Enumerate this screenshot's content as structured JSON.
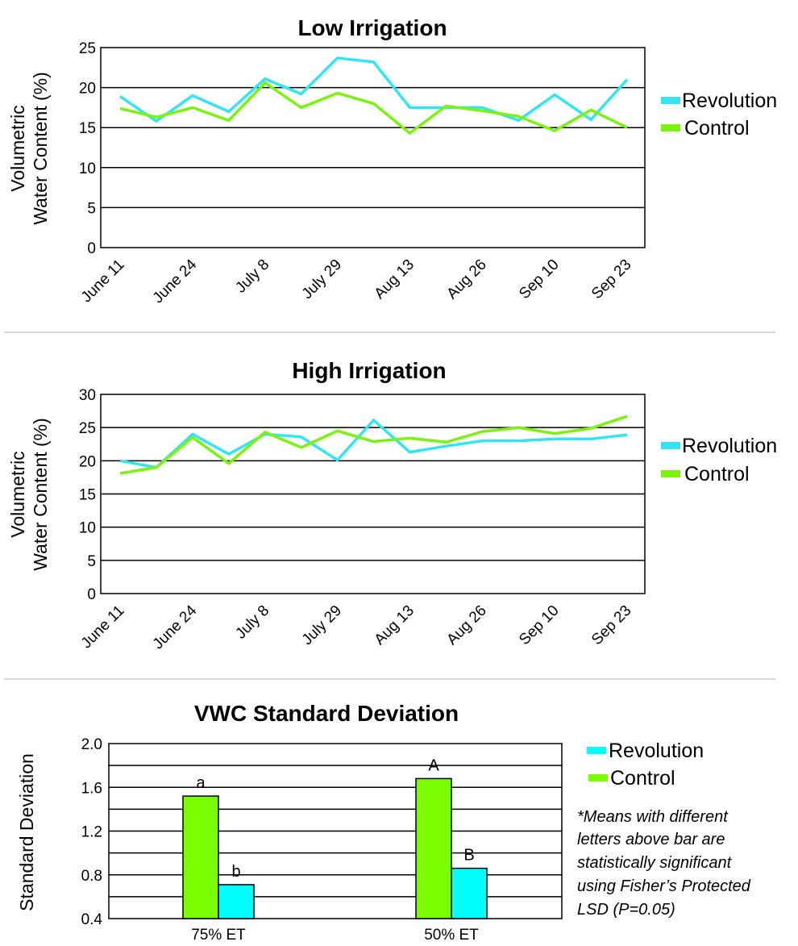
{
  "chart_data": [
    {
      "type": "line",
      "title": "Low Irrigation",
      "ylabel": [
        "Volumetric",
        "Water Content (%)"
      ],
      "xlabel": "",
      "ylim": [
        0,
        25
      ],
      "yticks": [
        0,
        5,
        10,
        15,
        20,
        25
      ],
      "grid": true,
      "legend": "right",
      "tick_labels": [
        "June 11",
        "June 24",
        "July 8",
        "July 29",
        "Aug 13",
        "Aug 26",
        "Sep 10",
        "Sep 23"
      ],
      "x": [
        0,
        0.5,
        1,
        1.5,
        2,
        2.5,
        3,
        3.5,
        4,
        4.5,
        5,
        5.5,
        6,
        6.5,
        7
      ],
      "series": [
        {
          "name": "Revolution",
          "color": "#33e5f2",
          "values": [
            18.9,
            15.8,
            19.0,
            17.0,
            21.1,
            19.2,
            23.7,
            23.2,
            17.5,
            17.5,
            17.5,
            15.9,
            19.1,
            16.0,
            21.0
          ]
        },
        {
          "name": "Control",
          "color": "#7cf20f",
          "values": [
            17.4,
            16.3,
            17.5,
            15.9,
            20.6,
            17.5,
            19.3,
            18.0,
            14.3,
            17.7,
            17.1,
            16.4,
            14.6,
            17.2,
            15.0
          ]
        }
      ]
    },
    {
      "type": "line",
      "title": "High Irrigation",
      "ylabel": [
        "Volumetric",
        "Water Content (%)"
      ],
      "xlabel": "",
      "ylim": [
        0,
        30
      ],
      "yticks": [
        0,
        5,
        10,
        15,
        20,
        25,
        30
      ],
      "grid": true,
      "legend": "right",
      "tick_labels": [
        "June 11",
        "June 24",
        "July 8",
        "July 29",
        "Aug 13",
        "Aug 26",
        "Sep 10",
        "Sep 23"
      ],
      "x": [
        0,
        0.5,
        1,
        1.5,
        2,
        2.5,
        3,
        3.5,
        4,
        4.5,
        5,
        5.5,
        6,
        6.5,
        7
      ],
      "series": [
        {
          "name": "Revolution",
          "color": "#33e5f2",
          "values": [
            20.0,
            19.0,
            24.0,
            21.0,
            24.0,
            23.6,
            20.1,
            26.1,
            21.3,
            22.2,
            23.0,
            23.0,
            23.3,
            23.3,
            23.9
          ]
        },
        {
          "name": "Control",
          "color": "#7cf20f",
          "values": [
            18.1,
            19.0,
            23.5,
            19.6,
            24.3,
            22.0,
            24.5,
            22.9,
            23.4,
            22.8,
            24.4,
            25.0,
            24.1,
            24.9,
            26.7
          ]
        }
      ]
    },
    {
      "type": "bar",
      "title": "VWC Standard Deviation",
      "ylabel": "Standard Deviation",
      "xlabel": "",
      "ylim": [
        0.4,
        2.0
      ],
      "yticks": [
        "0.4",
        "0.8",
        "1.2",
        "1.6",
        "2.0"
      ],
      "grid": true,
      "legend": "right",
      "categories": [
        "75% ET",
        "50% ET"
      ],
      "series": [
        {
          "name": "Control",
          "color": "#7cfc00",
          "values": [
            1.52,
            1.68
          ],
          "letters": [
            "a",
            "A"
          ]
        },
        {
          "name": "Revolution",
          "color": "#00ffff",
          "values": [
            0.71,
            0.86
          ],
          "letters": [
            "b",
            "B"
          ]
        }
      ],
      "legend_order": [
        "Revolution",
        "Control"
      ],
      "footnote": [
        "*Means with different",
        "letters above bar are",
        "statistically significant",
        "using Fisher’s Protected",
        "LSD (P=0.05)"
      ]
    }
  ]
}
